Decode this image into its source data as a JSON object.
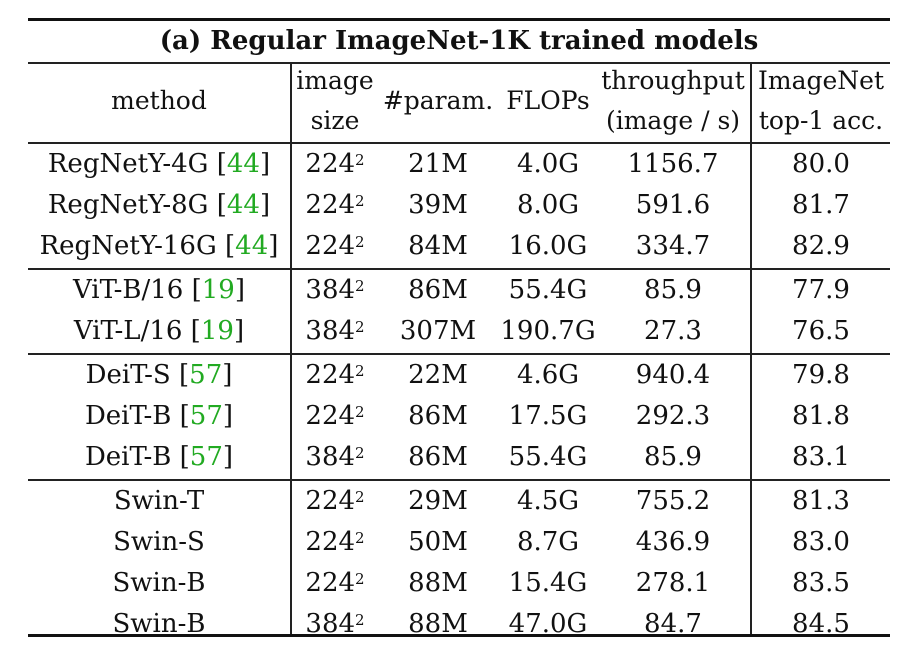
{
  "chart_data": {
    "type": "table",
    "title": "(a) Regular ImageNet-1K trained models",
    "columns": [
      "method",
      "image size",
      "#param.",
      "FLOPs",
      "throughput (image / s)",
      "ImageNet top-1 acc."
    ],
    "header": {
      "method": "method",
      "image_size_l1": "image",
      "image_size_l2": "size",
      "param": "#param.",
      "flops": "FLOPs",
      "throughput_l1": "throughput",
      "throughput_l2": "(image / s)",
      "acc_l1": "ImageNet",
      "acc_l2": "top-1 acc."
    },
    "groups": [
      [
        {
          "name": "RegNetY-4G",
          "ref": "44",
          "size": "224",
          "param": "21M",
          "flops": "4.0G",
          "throughput": "1156.7",
          "acc": "80.0"
        },
        {
          "name": "RegNetY-8G",
          "ref": "44",
          "size": "224",
          "param": "39M",
          "flops": "8.0G",
          "throughput": "591.6",
          "acc": "81.7"
        },
        {
          "name": "RegNetY-16G",
          "ref": "44",
          "size": "224",
          "param": "84M",
          "flops": "16.0G",
          "throughput": "334.7",
          "acc": "82.9"
        }
      ],
      [
        {
          "name": "ViT-B/16",
          "ref": "19",
          "size": "384",
          "param": "86M",
          "flops": "55.4G",
          "throughput": "85.9",
          "acc": "77.9"
        },
        {
          "name": "ViT-L/16",
          "ref": "19",
          "size": "384",
          "param": "307M",
          "flops": "190.7G",
          "throughput": "27.3",
          "acc": "76.5"
        }
      ],
      [
        {
          "name": "DeiT-S",
          "ref": "57",
          "size": "224",
          "param": "22M",
          "flops": "4.6G",
          "throughput": "940.4",
          "acc": "79.8"
        },
        {
          "name": "DeiT-B",
          "ref": "57",
          "size": "224",
          "param": "86M",
          "flops": "17.5G",
          "throughput": "292.3",
          "acc": "81.8"
        },
        {
          "name": "DeiT-B",
          "ref": "57",
          "size": "384",
          "param": "86M",
          "flops": "55.4G",
          "throughput": "85.9",
          "acc": "83.1"
        }
      ],
      [
        {
          "name": "Swin-T",
          "ref": "",
          "size": "224",
          "param": "29M",
          "flops": "4.5G",
          "throughput": "755.2",
          "acc": "81.3"
        },
        {
          "name": "Swin-S",
          "ref": "",
          "size": "224",
          "param": "50M",
          "flops": "8.7G",
          "throughput": "436.9",
          "acc": "83.0"
        },
        {
          "name": "Swin-B",
          "ref": "",
          "size": "224",
          "param": "88M",
          "flops": "15.4G",
          "throughput": "278.1",
          "acc": "83.5"
        },
        {
          "name": "Swin-B",
          "ref": "",
          "size": "384",
          "param": "88M",
          "flops": "47.0G",
          "throughput": "84.7",
          "acc": "84.5"
        }
      ]
    ],
    "size_exponent": "2",
    "colors": {
      "ref": "#22aa22",
      "text": "#111111"
    }
  }
}
